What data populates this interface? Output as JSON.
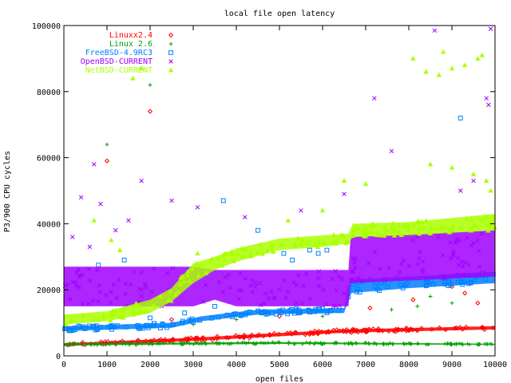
{
  "chart_data": {
    "type": "scatter",
    "title": "local file open latency",
    "xlabel": "open files",
    "ylabel": "P3/900 CPU cycles",
    "xlim": [
      0,
      10000
    ],
    "ylim": [
      0,
      100000
    ],
    "x_ticks": [
      0,
      1000,
      2000,
      3000,
      4000,
      5000,
      6000,
      7000,
      8000,
      9000,
      10000
    ],
    "y_ticks": [
      0,
      20000,
      40000,
      60000,
      80000,
      100000
    ],
    "legend_position": "top-left",
    "series": [
      {
        "name": "Linuxx2.4",
        "color": "#ff0000",
        "marker": "diamond",
        "band": [
          [
            0,
            3000,
            3800
          ],
          [
            3000,
            4500,
            5500
          ],
          [
            6500,
            7000,
            8000
          ],
          [
            10000,
            8000,
            9000
          ]
        ],
        "outliers": [
          [
            2000,
            74000
          ],
          [
            1000,
            59000
          ],
          [
            8100,
            17000
          ],
          [
            9000,
            21000
          ],
          [
            9300,
            19000
          ],
          [
            9600,
            16000
          ],
          [
            2500,
            11000
          ],
          [
            5000,
            12000
          ],
          [
            7100,
            14500
          ]
        ]
      },
      {
        "name": "Linux 2.6",
        "color": "#00a000",
        "marker": "plus",
        "band": [
          [
            0,
            3200,
            3800
          ],
          [
            5000,
            3600,
            4200
          ],
          [
            10000,
            3300,
            3700
          ]
        ],
        "outliers": [
          [
            2000,
            82000
          ],
          [
            1000,
            64000
          ],
          [
            8200,
            15000
          ],
          [
            7600,
            14000
          ],
          [
            9000,
            16000
          ],
          [
            8500,
            18000
          ],
          [
            4000,
            11000
          ],
          [
            6000,
            12000
          ],
          [
            3000,
            9500
          ],
          [
            5500,
            13000
          ]
        ]
      },
      {
        "name": "FreeBSD-4.9RC3",
        "color": "#0080ff",
        "marker": "square",
        "band": [
          [
            0,
            7500,
            9000
          ],
          [
            2500,
            8500,
            10000
          ],
          [
            3200,
            10500,
            12000
          ],
          [
            4500,
            12500,
            14000
          ],
          [
            6500,
            13000,
            14500
          ],
          [
            6650,
            19000,
            23000
          ],
          [
            8000,
            20500,
            24000
          ],
          [
            10000,
            22000,
            25500
          ]
        ],
        "outliers": [
          [
            9200,
            72000
          ],
          [
            3700,
            47000
          ],
          [
            4500,
            38000
          ],
          [
            5100,
            31000
          ],
          [
            5300,
            29000
          ],
          [
            5700,
            32000
          ],
          [
            5900,
            31000
          ],
          [
            6100,
            32000
          ],
          [
            1400,
            29000
          ],
          [
            800,
            27500
          ],
          [
            2800,
            13000
          ],
          [
            3500,
            15000
          ],
          [
            2000,
            11500
          ]
        ]
      },
      {
        "name": "OpenBSD-CURRENT",
        "color": "#a000ff",
        "marker": "x",
        "band": [
          [
            0,
            15000,
            27000
          ],
          [
            3000,
            15000,
            27000
          ],
          [
            3500,
            17000,
            26000
          ],
          [
            4000,
            15000,
            26000
          ],
          [
            6600,
            15000,
            26000
          ],
          [
            6650,
            22000,
            36000
          ],
          [
            10000,
            24000,
            38000
          ]
        ],
        "outliers": [
          [
            8600,
            98500
          ],
          [
            9900,
            99000
          ],
          [
            7200,
            78000
          ],
          [
            9800,
            78000
          ],
          [
            9850,
            76000
          ],
          [
            7600,
            62000
          ],
          [
            9500,
            53000
          ],
          [
            9200,
            50000
          ],
          [
            200,
            36000
          ],
          [
            400,
            48000
          ],
          [
            1500,
            41000
          ],
          [
            1800,
            53000
          ],
          [
            2500,
            47000
          ],
          [
            3100,
            45000
          ],
          [
            600,
            33000
          ],
          [
            1200,
            38000
          ],
          [
            4200,
            42000
          ],
          [
            5500,
            44000
          ],
          [
            6500,
            49000
          ],
          [
            700,
            58000
          ],
          [
            850,
            46000
          ]
        ]
      },
      {
        "name": "NetBSD-CURRENT",
        "color": "#aaff00",
        "marker": "triangle",
        "band": [
          [
            0,
            9500,
            12500
          ],
          [
            1000,
            10500,
            13500
          ],
          [
            2000,
            13000,
            17000
          ],
          [
            2500,
            16500,
            20500
          ],
          [
            3000,
            22000,
            28000
          ],
          [
            3500,
            26000,
            30000
          ],
          [
            4000,
            28500,
            32500
          ],
          [
            5000,
            32000,
            35500
          ],
          [
            6000,
            33000,
            36500
          ],
          [
            6600,
            34000,
            37000
          ],
          [
            6700,
            36000,
            40000
          ],
          [
            8000,
            36500,
            40500
          ],
          [
            10000,
            38000,
            43000
          ]
        ],
        "outliers": [
          [
            8400,
            86000
          ],
          [
            8700,
            85000
          ],
          [
            9000,
            87000
          ],
          [
            9300,
            88000
          ],
          [
            9600,
            90000
          ],
          [
            8100,
            90000
          ],
          [
            8800,
            92000
          ],
          [
            9700,
            91000
          ],
          [
            8500,
            58000
          ],
          [
            9000,
            57000
          ],
          [
            9500,
            55000
          ],
          [
            9800,
            53000
          ],
          [
            9900,
            50000
          ],
          [
            7000,
            52000
          ],
          [
            6500,
            53000
          ],
          [
            1600,
            84000
          ],
          [
            1800,
            87000
          ],
          [
            700,
            41000
          ],
          [
            1100,
            35000
          ],
          [
            1300,
            32000
          ],
          [
            3100,
            31000
          ],
          [
            5200,
            41000
          ],
          [
            6000,
            44000
          ]
        ]
      }
    ]
  }
}
